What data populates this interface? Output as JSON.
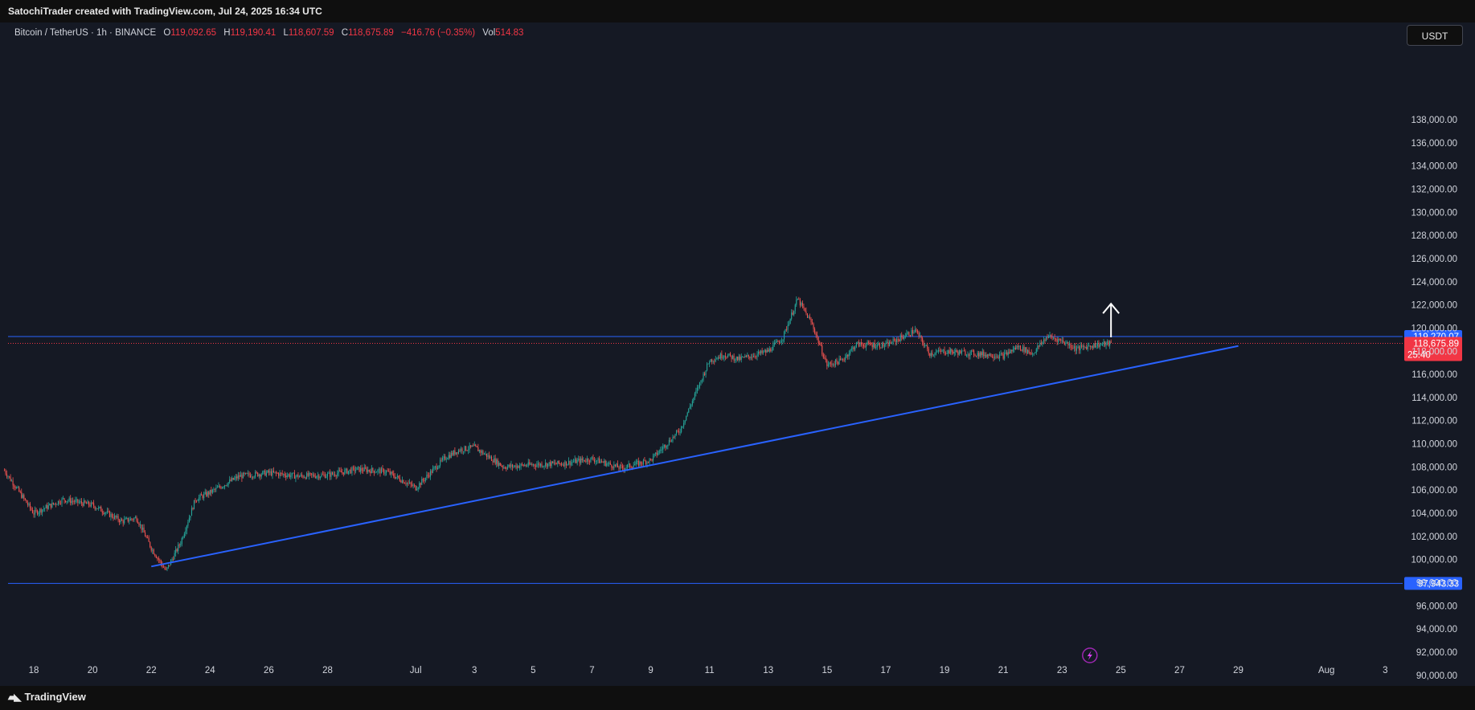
{
  "header": {
    "attribution": "SatochiTrader created with TradingView.com, Jul 24, 2025 16:34 UTC"
  },
  "legend": {
    "symbol": "Bitcoin / TetherUS · 1h · BINANCE",
    "open_label": "O",
    "open": "119,092.65",
    "high_label": "H",
    "high": "119,190.41",
    "low_label": "L",
    "low": "118,607.59",
    "close_label": "C",
    "close": "118,675.89",
    "change": "−416.76 (−0.35%)",
    "vol_label": "Vol",
    "vol": "514.83"
  },
  "toolbar": {
    "currency": "USDT"
  },
  "footer": {
    "brand": "TradingView",
    "brand_icon": "tradingview-logo-icon"
  },
  "colors": {
    "background": "#151924",
    "up": "#26a69a",
    "down": "#ef5350",
    "horizontal_line": "#2962ff",
    "trendline": "#2962ff",
    "last_price": "#f23645",
    "arrow": "#ffffff",
    "badge_blue": "#2962ff",
    "badge_red": "#f23645"
  },
  "chart_data": {
    "type": "candlestick",
    "timeframe": "1h",
    "x_tick_labels": [
      "18",
      "20",
      "22",
      "24",
      "26",
      "28",
      "Jul",
      "3",
      "5",
      "7",
      "9",
      "11",
      "13",
      "15",
      "17",
      "19",
      "21",
      "23",
      "25",
      "27",
      "29",
      "Aug",
      "3"
    ],
    "ylim": [
      89500,
      140500
    ],
    "y_tick_labels": [
      "138,000.00",
      "136,000.00",
      "134,000.00",
      "132,000.00",
      "130,000.00",
      "128,000.00",
      "126,000.00",
      "124,000.00",
      "122,000.00",
      "120,000.00",
      "118,000.00",
      "116,000.00",
      "114,000.00",
      "112,000.00",
      "110,000.00",
      "108,000.00",
      "106,000.00",
      "104,000.00",
      "102,000.00",
      "100,000.00",
      "98,000.00",
      "96,000.00",
      "94,000.00",
      "92,000.00",
      "90,000.00"
    ],
    "path_keypoints": [
      [
        "Jun 17",
        107700
      ],
      [
        "Jun 18",
        104000
      ],
      [
        "Jun 19",
        105200
      ],
      [
        "Jun 20",
        104700
      ],
      [
        "Jun 21",
        103300
      ],
      [
        "Jun 21 12:00",
        103600
      ],
      [
        "Jun 22",
        101000
      ],
      [
        "Jun 22 12:00",
        99000
      ],
      [
        "Jun 23",
        101500
      ],
      [
        "Jun 23 12:00",
        105200
      ],
      [
        "Jun 24",
        105800
      ],
      [
        "Jun 25",
        107200
      ],
      [
        "Jun 26",
        107500
      ],
      [
        "Jun 27",
        107200
      ],
      [
        "Jun 28",
        107300
      ],
      [
        "Jun 29",
        107800
      ],
      [
        "Jun 30",
        107600
      ],
      [
        "Jul 1",
        106200
      ],
      [
        "Jul 2",
        108800
      ],
      [
        "Jul 2 12:00",
        109500
      ],
      [
        "Jul 3",
        109700
      ],
      [
        "Jul 4",
        108000
      ],
      [
        "Jul 5",
        108200
      ],
      [
        "Jul 6",
        108300
      ],
      [
        "Jul 7",
        108700
      ],
      [
        "Jul 8",
        107900
      ],
      [
        "Jul 9",
        108600
      ],
      [
        "Jul 10",
        111200
      ],
      [
        "Jul 11",
        117200
      ],
      [
        "Jul 11 12:00",
        117700
      ],
      [
        "Jul 12",
        117300
      ],
      [
        "Jul 13",
        118000
      ],
      [
        "Jul 13 12:00",
        119200
      ],
      [
        "Jul 14",
        122500
      ],
      [
        "Jul 14 12:00",
        120300
      ],
      [
        "Jul 15",
        116800
      ],
      [
        "Jul 15 12:00",
        117200
      ],
      [
        "Jul 16",
        118600
      ],
      [
        "Jul 17",
        118500
      ],
      [
        "Jul 18",
        119800
      ],
      [
        "Jul 18 12:00",
        117800
      ],
      [
        "Jul 19",
        118000
      ],
      [
        "Jul 20",
        117800
      ],
      [
        "Jul 21",
        117600
      ],
      [
        "Jul 21 12:00",
        118400
      ],
      [
        "Jul 22",
        117800
      ],
      [
        "Jul 22 12:00",
        119300
      ],
      [
        "Jul 23",
        118900
      ],
      [
        "Jul 23 12:00",
        118200
      ],
      [
        "Jul 24",
        118500
      ],
      [
        "Jul 24 16:00",
        118676
      ]
    ],
    "horizontal_lines": [
      {
        "value": 119270.07,
        "label": "119,270.07"
      },
      {
        "value": 97943.33,
        "label": "97,943.33"
      }
    ],
    "trendline": {
      "from": [
        "Jun 22",
        99400
      ],
      "to": [
        "Jul 29",
        118450
      ]
    },
    "last_price": {
      "value": 118675.89,
      "label": "118,675.89",
      "countdown": "25:40"
    },
    "arrow": {
      "date": "Jul 24 16:00",
      "from": 119200,
      "to": 122100,
      "direction": "up"
    },
    "marker_icon": "lightning-icon"
  }
}
